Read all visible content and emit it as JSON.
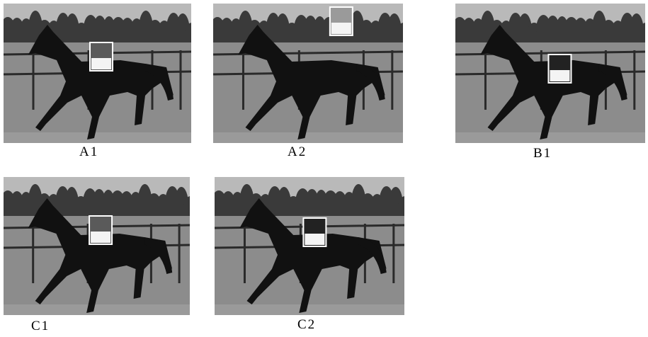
{
  "panels": [
    {
      "id": "A1",
      "label": "A1",
      "patch": "on-horse-shoulder"
    },
    {
      "id": "A2",
      "label": "A2",
      "patch": "in-sky"
    },
    {
      "id": "B1",
      "label": "B1",
      "patch": "on-horse-body-dark"
    },
    {
      "id": "C1",
      "label": "C1",
      "patch": "on-horse-shoulder"
    },
    {
      "id": "C2",
      "label": "C2",
      "patch": "on-horse-shoulder-dark"
    }
  ],
  "colors": {
    "sky": "#b9b9b9",
    "trees": "#3a3a3a",
    "ground": "#8c8c8c",
    "horse": "#111111",
    "patch_border": "#ffffff"
  }
}
